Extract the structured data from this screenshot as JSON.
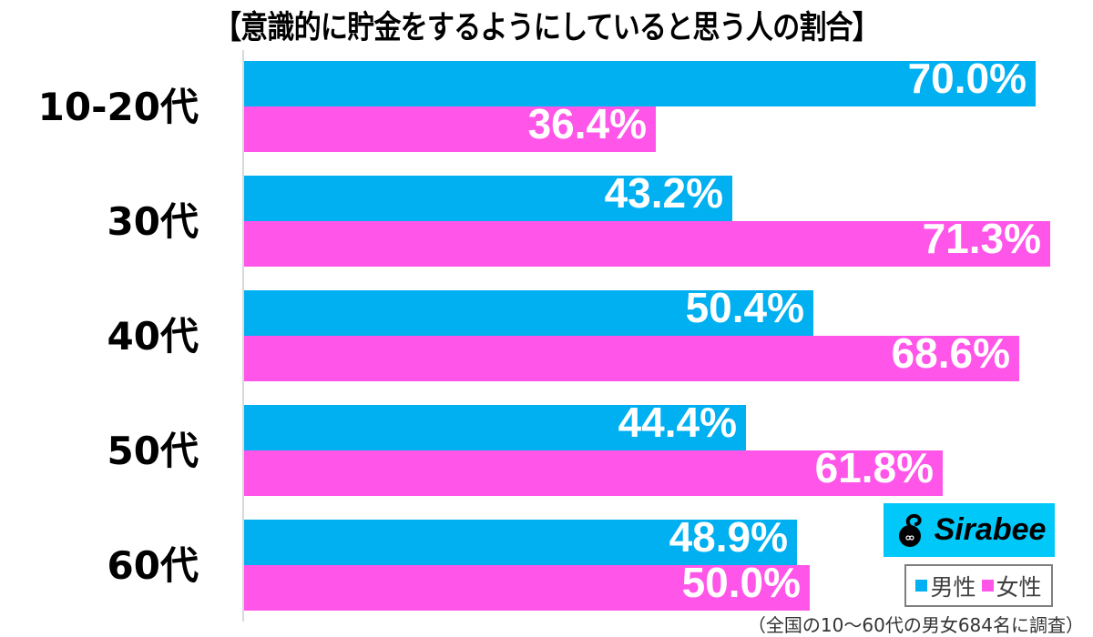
{
  "title": "【意識的に貯金をするようにしていると思う人の割合】",
  "colors": {
    "male": "#00b0f0",
    "female": "#ff55e8",
    "brand_bg": "#00c8f8"
  },
  "legend": {
    "male_label": "男性",
    "female_label": "女性"
  },
  "brand": {
    "name": "Sirabee"
  },
  "footnote": "（全国の10〜60代の男女684名に調査）",
  "groups": [
    {
      "label": "10-20代",
      "male": "70.0%",
      "female": "36.4%"
    },
    {
      "label": "30代",
      "male": "43.2%",
      "female": "71.3%"
    },
    {
      "label": "40代",
      "male": "50.4%",
      "female": "68.6%"
    },
    {
      "label": "50代",
      "male": "44.4%",
      "female": "61.8%"
    },
    {
      "label": "60代",
      "male": "48.9%",
      "female": "50.0%"
    }
  ],
  "chart_data": {
    "type": "bar",
    "orientation": "horizontal",
    "title": "【意識的に貯金をするようにしていると思う人の割合】",
    "categories": [
      "10-20代",
      "30代",
      "40代",
      "50代",
      "60代"
    ],
    "series": [
      {
        "name": "男性",
        "color": "#00b0f0",
        "values": [
          70.0,
          43.2,
          50.4,
          44.4,
          48.9
        ]
      },
      {
        "name": "女性",
        "color": "#ff55e8",
        "values": [
          36.4,
          71.3,
          68.6,
          61.8,
          50.0
        ]
      }
    ],
    "xlabel": "",
    "ylabel": "",
    "unit": "%",
    "grid": false,
    "legend_position": "bottom-right",
    "annotation": "（全国の10〜60代の男女684名に調査）",
    "source_brand": "Sirabee"
  }
}
